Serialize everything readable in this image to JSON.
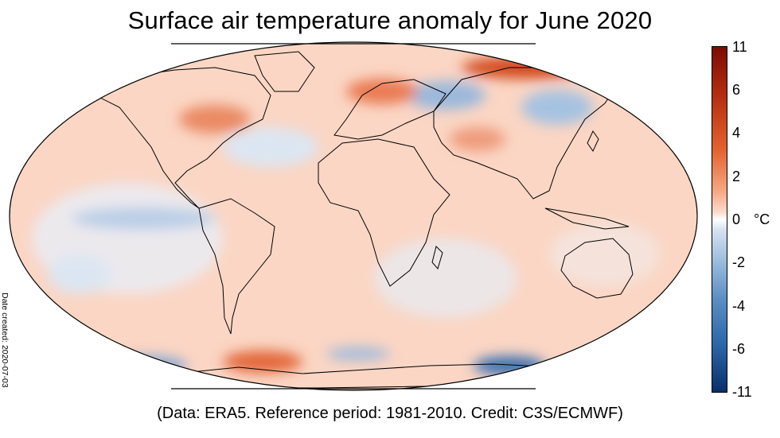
{
  "title": "Surface air temperature anomaly for June 2020",
  "date_created": "Date created: 2020-07-03",
  "credit": "(Data: ERA5.  Reference period: 1981-2010.  Credit: C3S/ECMWF)",
  "colorbar": {
    "unit": "°C",
    "ticks": [
      "11",
      "6",
      "4",
      "2",
      "0",
      "-2",
      "-4",
      "-6",
      "-11"
    ],
    "colors": {
      "max": "#7a0c04",
      "warm": "#e3632f",
      "neutral": "#ffffff",
      "cool": "#5b8ec3",
      "min": "#08306b"
    }
  },
  "map": {
    "projection": "Robinson",
    "field": "surface air temperature anomaly",
    "colors": {
      "background_warm": "#fbd3bf",
      "ocean_cool": "#dfe8f3",
      "coast": "#000000"
    }
  }
}
